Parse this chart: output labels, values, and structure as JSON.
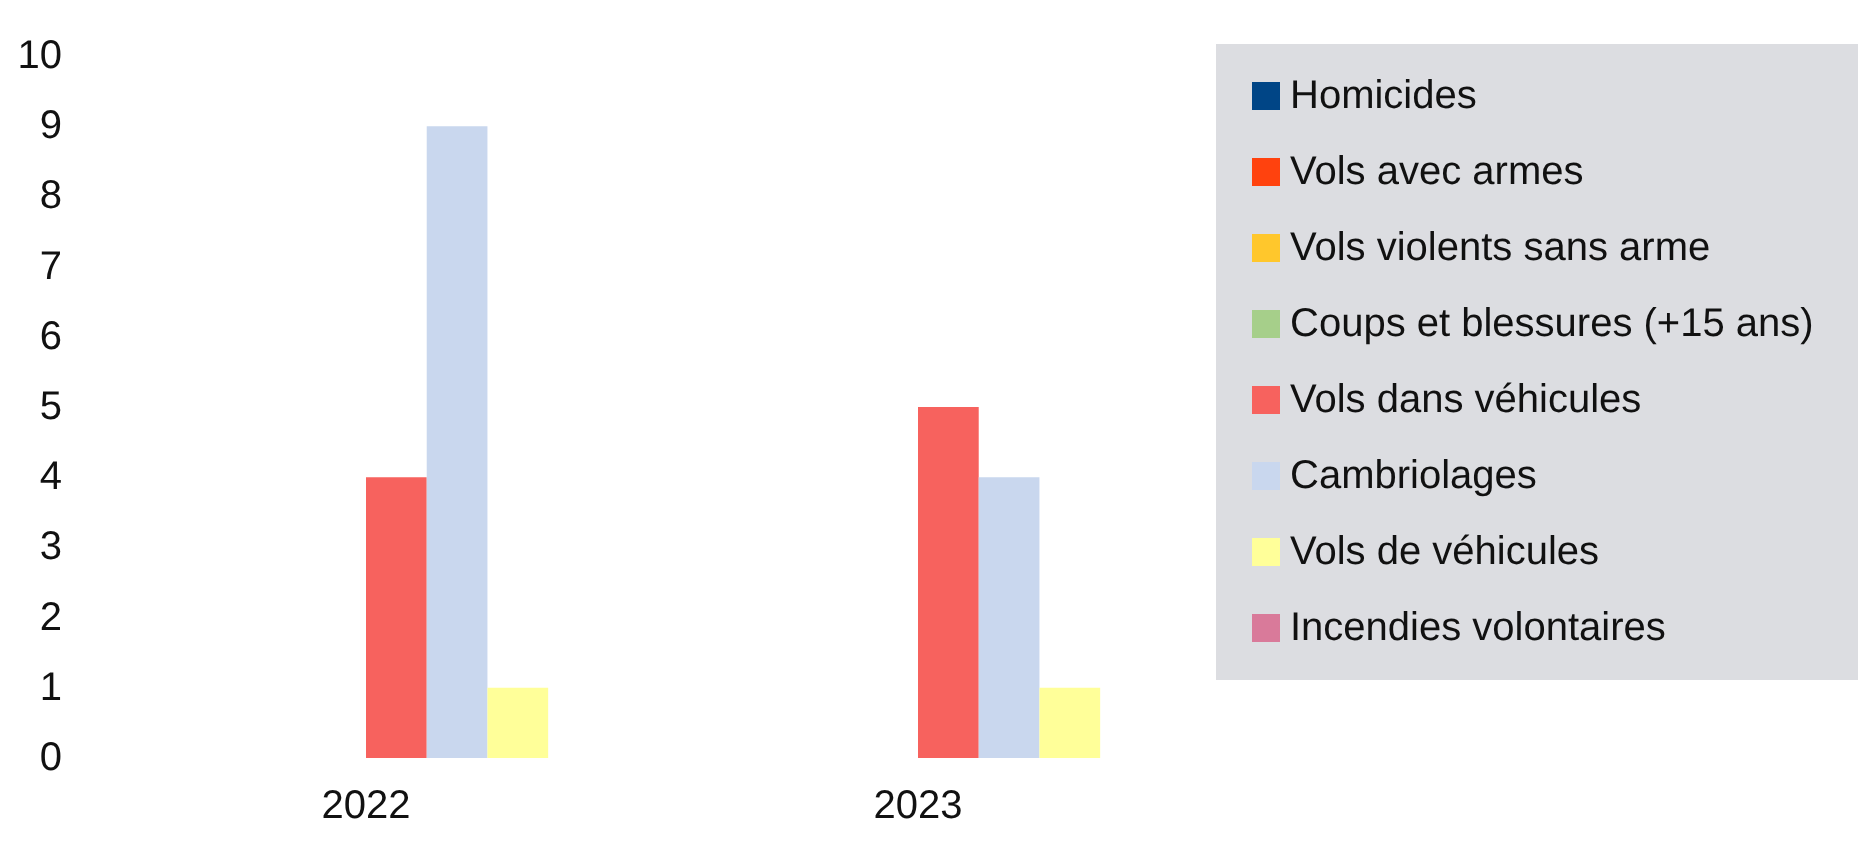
{
  "chart_data": {
    "type": "bar",
    "categories": [
      "2022",
      "2023"
    ],
    "series": [
      {
        "name": "Homicides",
        "color": "#004586",
        "values": [
          0,
          0
        ]
      },
      {
        "name": "Vols avec armes",
        "color": "#ff420e",
        "values": [
          0,
          0
        ]
      },
      {
        "name": "Vols violents sans arme",
        "color": "#ffc72c",
        "values": [
          0,
          0
        ]
      },
      {
        "name": "Coups et blessures (+15 ans)",
        "color": "#a6cf8a",
        "values": [
          0,
          0
        ]
      },
      {
        "name": "Vols dans véhicules",
        "color": "#f7625e",
        "values": [
          4,
          5
        ]
      },
      {
        "name": "Cambriolages",
        "color": "#c9d7ee",
        "values": [
          9,
          4
        ]
      },
      {
        "name": "Vols de véhicules",
        "color": "#ffff99",
        "values": [
          1,
          1
        ]
      },
      {
        "name": "Incendies volontaires",
        "color": "#d97a9a",
        "values": [
          0,
          0
        ]
      }
    ],
    "ylim": [
      0,
      10
    ],
    "yticks": [
      0,
      1,
      2,
      3,
      4,
      5,
      6,
      7,
      8,
      9,
      10
    ],
    "grid": false,
    "legend": "right"
  }
}
